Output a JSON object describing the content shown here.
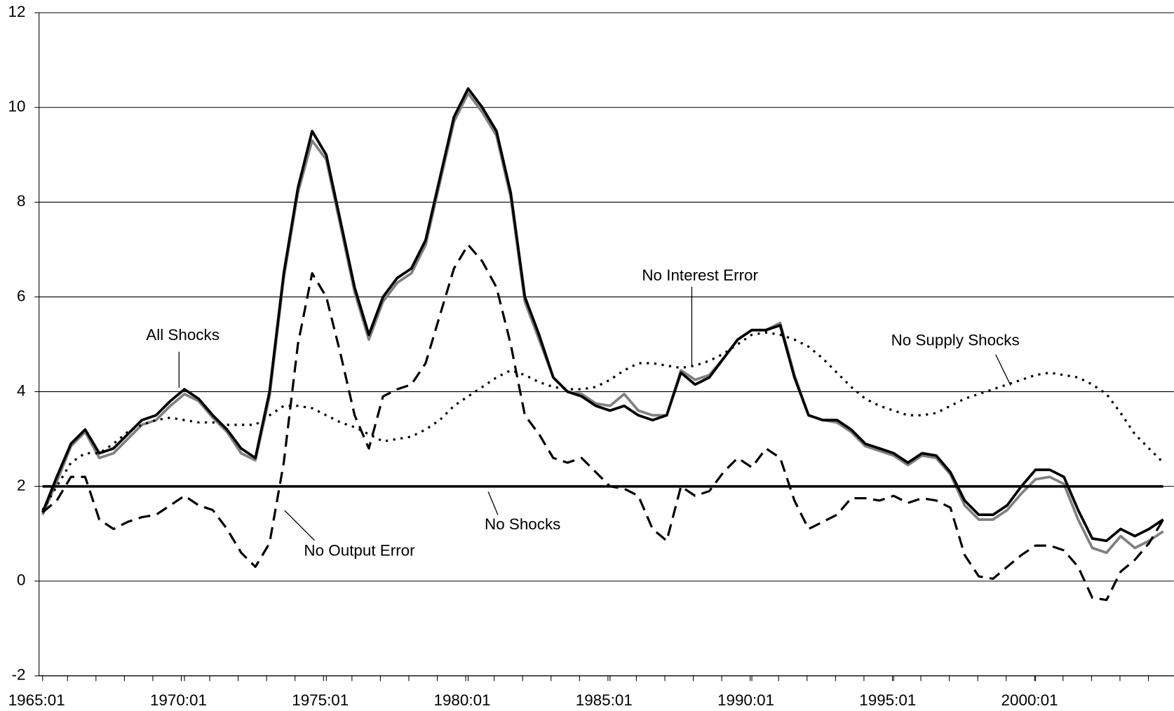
{
  "chart_data": {
    "type": "line",
    "xlim": [
      1964.875,
      2004.875
    ],
    "ylim": [
      -2,
      12
    ],
    "yticks": [
      -2,
      0,
      2,
      4,
      6,
      8,
      10,
      12
    ],
    "xticks": [
      {
        "value": 1965,
        "label": "1965:01"
      },
      {
        "value": 1970,
        "label": "1970:01"
      },
      {
        "value": 1975,
        "label": "1975:01"
      },
      {
        "value": 1980,
        "label": "1980:01"
      },
      {
        "value": 1985,
        "label": "1985:01"
      },
      {
        "value": 1990,
        "label": "1990:01"
      },
      {
        "value": 1995,
        "label": "1995:01"
      },
      {
        "value": 2000,
        "label": "2000:01"
      }
    ],
    "grid": true,
    "x": [
      1965,
      1965.5,
      1966,
      1966.5,
      1967,
      1967.5,
      1968,
      1968.5,
      1969,
      1969.5,
      1970,
      1970.5,
      1971,
      1971.5,
      1972,
      1972.5,
      1973,
      1973.5,
      1974,
      1974.5,
      1975,
      1975.5,
      1976,
      1976.5,
      1977,
      1977.5,
      1978,
      1978.5,
      1979,
      1979.5,
      1980,
      1980.5,
      1981,
      1981.5,
      1982,
      1982.5,
      1983,
      1983.5,
      1984,
      1984.5,
      1985,
      1985.5,
      1986,
      1986.5,
      1987,
      1987.5,
      1988,
      1988.5,
      1989,
      1989.5,
      1990,
      1990.5,
      1991,
      1991.5,
      1992,
      1992.5,
      1993,
      1993.5,
      1994,
      1994.5,
      1995,
      1995.5,
      1996,
      1996.5,
      1997,
      1997.5,
      1998,
      1998.5,
      1999,
      1999.5,
      2000,
      2000.5,
      2001,
      2001.5,
      2002,
      2002.5,
      2003,
      2003.5,
      2004,
      2004.5
    ],
    "series": [
      {
        "name": "No Interest Error",
        "color": "#808080",
        "style": "solid",
        "values": [
          1.4,
          2.1,
          2.85,
          3.15,
          2.6,
          2.7,
          3.0,
          3.3,
          3.4,
          3.7,
          3.95,
          3.8,
          3.45,
          3.15,
          2.7,
          2.55,
          3.9,
          6.4,
          8.2,
          9.3,
          8.9,
          7.5,
          6.1,
          5.1,
          5.9,
          6.3,
          6.5,
          7.1,
          8.4,
          9.7,
          10.3,
          9.9,
          9.4,
          8.1,
          5.9,
          5.1,
          4.3,
          4.0,
          3.95,
          3.75,
          3.7,
          3.95,
          3.6,
          3.5,
          3.5,
          4.45,
          4.25,
          4.35,
          4.7,
          5.1,
          5.3,
          5.3,
          5.45,
          4.35,
          3.5,
          3.4,
          3.35,
          3.15,
          2.85,
          2.75,
          2.65,
          2.45,
          2.65,
          2.6,
          2.25,
          1.6,
          1.3,
          1.3,
          1.5,
          1.85,
          2.15,
          2.2,
          2.05,
          1.3,
          0.7,
          0.6,
          0.95,
          0.7,
          0.85,
          1.05
        ]
      },
      {
        "name": "All Shocks",
        "color": "#000000",
        "style": "solid",
        "values": [
          1.45,
          2.2,
          2.9,
          3.2,
          2.7,
          2.8,
          3.1,
          3.4,
          3.5,
          3.8,
          4.05,
          3.85,
          3.5,
          3.2,
          2.8,
          2.6,
          4.0,
          6.5,
          8.3,
          9.5,
          9.0,
          7.6,
          6.2,
          5.2,
          6.0,
          6.4,
          6.6,
          7.2,
          8.5,
          9.8,
          10.4,
          10.0,
          9.5,
          8.2,
          6.0,
          5.2,
          4.3,
          4.0,
          3.9,
          3.7,
          3.6,
          3.7,
          3.5,
          3.4,
          3.5,
          4.4,
          4.15,
          4.3,
          4.7,
          5.1,
          5.3,
          5.3,
          5.4,
          4.3,
          3.5,
          3.4,
          3.4,
          3.2,
          2.9,
          2.8,
          2.7,
          2.5,
          2.7,
          2.65,
          2.3,
          1.7,
          1.4,
          1.4,
          1.6,
          2.0,
          2.35,
          2.35,
          2.2,
          1.5,
          0.9,
          0.85,
          1.1,
          0.95,
          1.1,
          1.3
        ]
      },
      {
        "name": "No Supply Shocks",
        "color": "#000000",
        "style": "dotted",
        "values": [
          1.5,
          2.0,
          2.5,
          2.7,
          2.7,
          2.9,
          3.15,
          3.3,
          3.4,
          3.45,
          3.4,
          3.35,
          3.35,
          3.3,
          3.3,
          3.3,
          3.5,
          3.7,
          3.7,
          3.65,
          3.5,
          3.35,
          3.25,
          3.1,
          2.95,
          3.0,
          3.05,
          3.2,
          3.4,
          3.7,
          3.9,
          4.1,
          4.3,
          4.45,
          4.35,
          4.2,
          4.1,
          4.05,
          4.05,
          4.1,
          4.25,
          4.45,
          4.6,
          4.6,
          4.55,
          4.5,
          4.55,
          4.65,
          4.8,
          5.0,
          5.2,
          5.25,
          5.2,
          5.1,
          4.95,
          4.7,
          4.4,
          4.1,
          3.85,
          3.7,
          3.6,
          3.5,
          3.5,
          3.55,
          3.7,
          3.85,
          3.95,
          4.05,
          4.15,
          4.25,
          4.35,
          4.4,
          4.35,
          4.3,
          4.15,
          3.95,
          3.55,
          3.1,
          2.8,
          2.5
        ]
      },
      {
        "name": "No Output Error",
        "color": "#000000",
        "style": "dashed",
        "values": [
          1.45,
          1.7,
          2.2,
          2.2,
          1.3,
          1.1,
          1.25,
          1.35,
          1.4,
          1.6,
          1.8,
          1.6,
          1.5,
          1.1,
          0.6,
          0.3,
          0.8,
          2.5,
          5.0,
          6.5,
          6.0,
          4.8,
          3.5,
          2.8,
          3.9,
          4.05,
          4.15,
          4.6,
          5.6,
          6.6,
          7.1,
          6.75,
          6.2,
          5.0,
          3.5,
          3.1,
          2.6,
          2.5,
          2.6,
          2.3,
          2.0,
          1.95,
          1.8,
          1.1,
          0.85,
          2.0,
          1.8,
          1.9,
          2.3,
          2.6,
          2.4,
          2.8,
          2.6,
          1.7,
          1.1,
          1.25,
          1.4,
          1.75,
          1.75,
          1.7,
          1.8,
          1.65,
          1.75,
          1.7,
          1.55,
          0.55,
          0.1,
          0.05,
          0.3,
          0.55,
          0.75,
          0.75,
          0.65,
          0.3,
          -0.35,
          -0.4,
          0.2,
          0.45,
          0.8,
          1.3
        ]
      },
      {
        "name": "No Shocks",
        "color": "#000000",
        "style": "solid",
        "values": [
          2,
          2,
          2,
          2,
          2,
          2,
          2,
          2,
          2,
          2,
          2,
          2,
          2,
          2,
          2,
          2,
          2,
          2,
          2,
          2,
          2,
          2,
          2,
          2,
          2,
          2,
          2,
          2,
          2,
          2,
          2,
          2,
          2,
          2,
          2,
          2,
          2,
          2,
          2,
          2,
          2,
          2,
          2,
          2,
          2,
          2,
          2,
          2,
          2,
          2,
          2,
          2,
          2,
          2,
          2,
          2,
          2,
          2,
          2,
          2,
          2,
          2,
          2,
          2,
          2,
          2,
          2,
          2,
          2,
          2,
          2,
          2,
          2,
          2,
          2,
          2,
          2,
          2,
          2,
          2
        ]
      }
    ]
  }
}
